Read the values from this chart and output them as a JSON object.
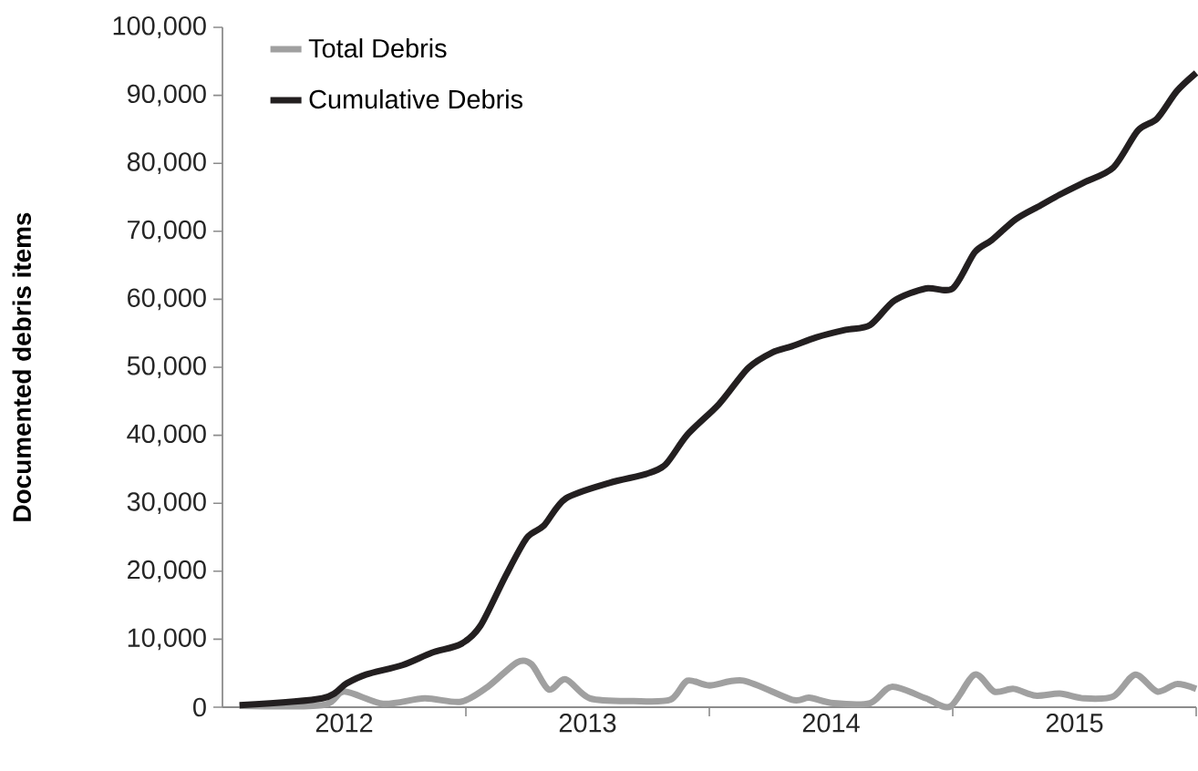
{
  "chart_data": {
    "type": "line",
    "ylabel": "Documented debris items",
    "xlim": [
      2012,
      2016
    ],
    "xticks": [
      {
        "value": 2012.5,
        "label": "2012"
      },
      {
        "value": 2013,
        "label": null
      },
      {
        "value": 2013.5,
        "label": "2013"
      },
      {
        "value": 2014,
        "label": null
      },
      {
        "value": 2014.5,
        "label": "2014"
      },
      {
        "value": 2015,
        "label": null
      },
      {
        "value": 2015.5,
        "label": "2015"
      },
      {
        "value": 2016,
        "label": null
      }
    ],
    "ylim": [
      0,
      100000
    ],
    "yticks": [
      0,
      {
        "value": 10000,
        "label": "10,000"
      },
      {
        "value": 20000,
        "label": "20,000"
      },
      {
        "value": 30000,
        "label": "30,000"
      },
      {
        "value": 40000,
        "label": "40,000"
      },
      {
        "value": 50000,
        "label": "50,000"
      },
      {
        "value": 60000,
        "label": "60,000"
      },
      {
        "value": 70000,
        "label": "70,000"
      },
      {
        "value": 80000,
        "label": "80,000"
      },
      {
        "value": 90000,
        "label": "90,000"
      },
      {
        "value": 100000,
        "label": "100,000"
      }
    ],
    "legend": "top left",
    "grid": false,
    "marker": "none",
    "line_style": "solid",
    "series": [
      {
        "name": "Total Debris",
        "color": "#a0a0a0",
        "x": [
          2012.07,
          2012.41,
          2012.5,
          2012.66,
          2012.83,
          2012.98,
          2013.09,
          2013.21,
          2013.27,
          2013.34,
          2013.41,
          2013.51,
          2013.69,
          2013.84,
          2013.91,
          2014.0,
          2014.14,
          2014.34,
          2014.41,
          2014.51,
          2014.66,
          2014.75,
          2014.89,
          2014.99,
          2015.09,
          2015.17,
          2015.25,
          2015.34,
          2015.44,
          2015.54,
          2015.66,
          2015.75,
          2015.84,
          2015.92,
          2016.0
        ],
        "values": [
          200,
          300,
          2300,
          500,
          1300,
          800,
          3000,
          6600,
          6300,
          2600,
          4100,
          1300,
          900,
          1100,
          3900,
          3200,
          3900,
          1100,
          1400,
          600,
          600,
          3000,
          1300,
          100,
          4800,
          2300,
          2700,
          1700,
          2000,
          1300,
          1600,
          4800,
          2300,
          3400,
          2700
        ]
      },
      {
        "name": "Cumulative Debris",
        "color": "#231f20",
        "x": [
          2012.07,
          2012.41,
          2012.51,
          2012.59,
          2012.74,
          2012.86,
          2012.98,
          2013.06,
          2013.16,
          2013.25,
          2013.32,
          2013.41,
          2013.59,
          2013.74,
          2013.82,
          2013.91,
          2014.04,
          2014.16,
          2014.26,
          2014.34,
          2014.44,
          2014.56,
          2014.66,
          2014.76,
          2014.89,
          2015.0,
          2015.09,
          2015.16,
          2015.26,
          2015.36,
          2015.44,
          2015.54,
          2015.66,
          2015.76,
          2015.84,
          2015.92,
          2016.0
        ],
        "values": [
          300,
          1300,
          3500,
          4800,
          6200,
          8000,
          9300,
          12000,
          19100,
          24900,
          26700,
          30700,
          33000,
          34300,
          35700,
          40100,
          44600,
          49900,
          52200,
          53100,
          54400,
          55500,
          56200,
          59800,
          61600,
          61600,
          66900,
          68700,
          71800,
          73800,
          75400,
          77200,
          79400,
          84800,
          86600,
          90600,
          93300
        ]
      }
    ]
  }
}
